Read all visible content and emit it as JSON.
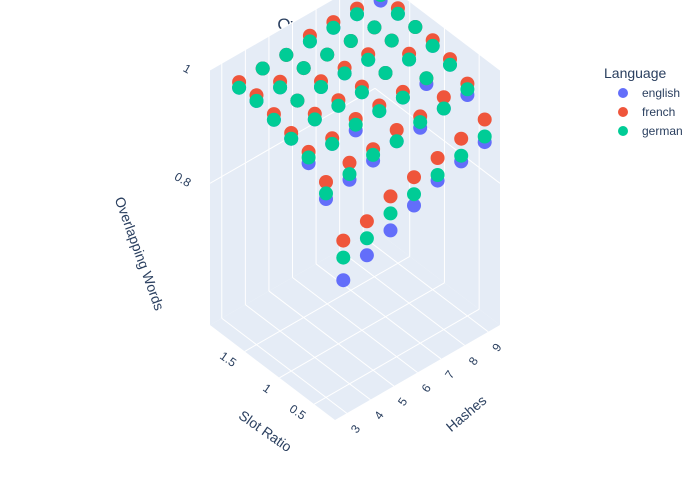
{
  "chart_data": {
    "type": "scatter3d",
    "title": "Overlapping Words",
    "legend": {
      "title": "Language",
      "placement": "top-right",
      "series": [
        {
          "name": "english",
          "color": "#636efa"
        },
        {
          "name": "french",
          "color": "#ef553b"
        },
        {
          "name": "german",
          "color": "#00cc96"
        }
      ]
    },
    "axes": {
      "x": {
        "label": "Hashes",
        "ticks": [
          "3",
          "4",
          "5",
          "6",
          "7",
          "8",
          "9"
        ],
        "range": [
          2.5,
          9.5
        ]
      },
      "y": {
        "label": "Slot Ratio",
        "ticks": [
          "0.5",
          "1",
          "1.5"
        ],
        "range": [
          0.2,
          2.0
        ]
      },
      "z": {
        "label": "Overlapping Words",
        "ticks": [
          "0.8",
          "1"
        ],
        "range": [
          0.55,
          1.0
        ]
      }
    },
    "grid": true,
    "hashes": [
      3,
      4,
      5,
      6,
      7,
      8,
      9
    ],
    "slot_ratios": [
      0.25,
      0.5,
      0.75,
      1.0,
      1.25,
      1.5,
      1.75
    ],
    "series": [
      {
        "name": "english",
        "values": [
          [
            0.78,
            0.9,
            0.94,
            0.96,
            0.97,
            0.98,
            0.98
          ],
          [
            0.8,
            0.91,
            0.95,
            0.97,
            0.98,
            0.98,
            0.99
          ],
          [
            0.82,
            0.92,
            0.95,
            0.97,
            0.98,
            0.99,
            0.99
          ],
          [
            0.84,
            0.93,
            0.96,
            0.97,
            0.98,
            0.99,
            0.99
          ],
          [
            0.86,
            0.93,
            0.96,
            0.98,
            0.98,
            0.99,
            0.99
          ],
          [
            0.87,
            0.94,
            0.96,
            0.98,
            0.99,
            0.99,
            0.99
          ],
          [
            0.88,
            0.94,
            0.97,
            0.98,
            0.99,
            0.99,
            0.99
          ]
        ]
      },
      {
        "name": "french",
        "values": [
          [
            0.85,
            0.93,
            0.96,
            0.97,
            0.98,
            0.99,
            0.99
          ],
          [
            0.86,
            0.94,
            0.96,
            0.98,
            0.98,
            0.99,
            0.99
          ],
          [
            0.88,
            0.94,
            0.97,
            0.98,
            0.99,
            0.99,
            0.99
          ],
          [
            0.89,
            0.95,
            0.97,
            0.98,
            0.99,
            0.99,
            1.0
          ],
          [
            0.9,
            0.95,
            0.97,
            0.98,
            0.99,
            0.99,
            1.0
          ],
          [
            0.91,
            0.96,
            0.97,
            0.99,
            0.99,
            0.99,
            1.0
          ],
          [
            0.92,
            0.96,
            0.98,
            0.99,
            0.99,
            1.0,
            1.0
          ]
        ]
      },
      {
        "name": "german",
        "values": [
          [
            0.82,
            0.91,
            0.95,
            0.96,
            0.97,
            0.98,
            0.98
          ],
          [
            0.83,
            0.92,
            0.95,
            0.97,
            0.98,
            0.98,
            0.99
          ],
          [
            0.85,
            0.93,
            0.96,
            0.97,
            0.98,
            0.99,
            0.99
          ],
          [
            0.86,
            0.93,
            0.96,
            0.97,
            0.98,
            0.99,
            0.99
          ],
          [
            0.87,
            0.94,
            0.96,
            0.98,
            0.98,
            0.99,
            0.99
          ],
          [
            0.88,
            0.94,
            0.97,
            0.98,
            0.99,
            0.99,
            0.99
          ],
          [
            0.89,
            0.95,
            0.97,
            0.98,
            0.99,
            0.99,
            1.0
          ]
        ]
      }
    ]
  }
}
